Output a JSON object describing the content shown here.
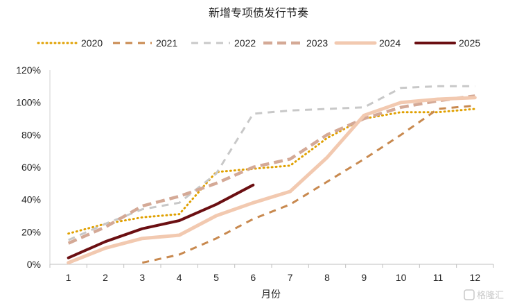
{
  "chart_data": {
    "type": "line",
    "title": "新增专项债发行节奏",
    "xlabel": "月份",
    "ylabel": "",
    "categories": [
      "1",
      "2",
      "3",
      "4",
      "5",
      "6",
      "7",
      "8",
      "9",
      "10",
      "11",
      "12"
    ],
    "x": [
      1,
      2,
      3,
      4,
      5,
      6,
      7,
      8,
      9,
      10,
      11,
      12
    ],
    "ylim": [
      0,
      1.2
    ],
    "yticks": [
      "0%",
      "20%",
      "40%",
      "60%",
      "80%",
      "100%",
      "120%"
    ],
    "legend_position": "top",
    "grid": false,
    "series": [
      {
        "name": "2020",
        "color": "#E0A000",
        "style": "dotted",
        "values": [
          0.19,
          0.25,
          0.29,
          0.31,
          0.57,
          0.59,
          0.61,
          0.78,
          0.9,
          0.94,
          0.94,
          0.96
        ]
      },
      {
        "name": "2021",
        "color": "#C8894F",
        "style": "dashed",
        "values": [
          null,
          null,
          0.01,
          0.06,
          0.16,
          0.28,
          0.37,
          0.51,
          0.65,
          0.8,
          0.96,
          0.98
        ]
      },
      {
        "name": "2022",
        "color": "#C8C8C8",
        "style": "dashed",
        "values": [
          0.15,
          0.25,
          0.34,
          0.38,
          0.56,
          0.93,
          0.95,
          0.96,
          0.97,
          1.09,
          1.1,
          1.1
        ]
      },
      {
        "name": "2023",
        "color": "#D4A996",
        "style": "dashed-thick",
        "values": [
          0.13,
          0.23,
          0.36,
          0.42,
          0.5,
          0.6,
          0.65,
          0.8,
          0.9,
          0.97,
          1.01,
          1.04
        ]
      },
      {
        "name": "2024",
        "color": "#F2C9B0",
        "style": "solid-thick",
        "values": [
          0.01,
          0.1,
          0.16,
          0.18,
          0.3,
          0.38,
          0.45,
          0.66,
          0.92,
          1.0,
          1.02,
          1.03
        ]
      },
      {
        "name": "2025",
        "color": "#6B0F12",
        "style": "solid",
        "values": [
          0.04,
          0.14,
          0.22,
          0.27,
          0.37,
          0.49,
          null,
          null,
          null,
          null,
          null,
          null
        ]
      }
    ]
  },
  "watermark": "格隆汇"
}
